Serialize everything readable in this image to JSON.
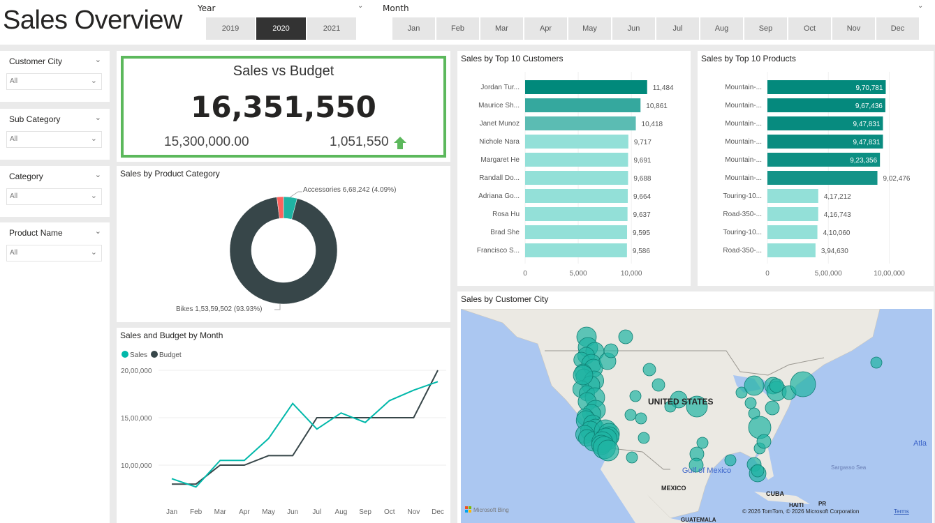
{
  "header": {
    "title": "Sales Overview"
  },
  "year_slicer": {
    "label": "Year",
    "options": [
      "2019",
      "2020",
      "2021"
    ],
    "selected": "2020"
  },
  "month_slicer": {
    "label": "Month",
    "options": [
      "Jan",
      "Feb",
      "Mar",
      "Apr",
      "May",
      "Jun",
      "Jul",
      "Aug",
      "Sep",
      "Oct",
      "Nov",
      "Dec"
    ]
  },
  "filters": [
    {
      "label": "Customer City",
      "value": "All"
    },
    {
      "label": "Sub Category",
      "value": "All"
    },
    {
      "label": "Category",
      "value": "All"
    },
    {
      "label": "Product Name",
      "value": "All"
    }
  ],
  "kpi": {
    "title": "Sales vs Budget",
    "value": "16,351,550",
    "budget": "15,300,000.00",
    "variance": "1,051,550",
    "trend_icon": "arrow-up",
    "accent": "#5cb85c"
  },
  "chart_data": [
    {
      "type": "pie",
      "title": "Sales by Product Category",
      "donut": true,
      "slices": [
        {
          "name": "Accessories",
          "value": 668242,
          "label": "Accessories 6,68,242 (4.09%)",
          "percent": 4.09,
          "color": "#1fb3a3"
        },
        {
          "name": "Bikes",
          "value": 15359502,
          "label": "Bikes 1,53,59,502 (93.93%)",
          "percent": 93.93,
          "color": "#374649"
        },
        {
          "name": "",
          "percent": 1.98,
          "color": "#fd625e"
        }
      ]
    },
    {
      "type": "bar",
      "orientation": "horizontal",
      "title": "Sales by Top 10 Customers",
      "categories": [
        "Jordan Tur...",
        "Maurice Sh...",
        "Janet Munoz",
        "Nichole Nara",
        "Margaret He",
        "Randall Do...",
        "Adriana Go...",
        "Rosa Hu",
        "Brad She",
        "Francisco S..."
      ],
      "values": [
        11484,
        10861,
        10418,
        9717,
        9691,
        9688,
        9664,
        9637,
        9595,
        9586
      ],
      "value_labels": [
        "11,484",
        "10,861",
        "10,418",
        "9,717",
        "9,691",
        "9,688",
        "9,664",
        "9,637",
        "9,595",
        "9,586"
      ],
      "xlim": [
        0,
        11500
      ],
      "xticks": [
        0,
        5000,
        10000
      ],
      "xtick_labels": [
        "0",
        "5,000",
        "10,000"
      ],
      "colors": [
        "#01897b",
        "#35a89e",
        "#5bbcb3",
        "#93e0d8",
        "#93e0d8",
        "#93e0d8",
        "#93e0d8",
        "#93e0d8",
        "#93e0d8",
        "#93e0d8"
      ]
    },
    {
      "type": "bar",
      "orientation": "horizontal",
      "title": "Sales by Top 10 Products",
      "categories": [
        "Mountain-...",
        "Mountain-...",
        "Mountain-...",
        "Mountain-...",
        "Mountain-...",
        "Mountain-...",
        "Touring-10...",
        "Road-350-...",
        "Touring-10...",
        "Road-350-..."
      ],
      "values": [
        970781,
        967436,
        947831,
        947831,
        923356,
        902476,
        417212,
        416743,
        410060,
        394630
      ],
      "value_labels": [
        "9,70,781",
        "9,67,436",
        "9,47,831",
        "9,47,831",
        "9,23,356",
        "9,02,476",
        "4,17,212",
        "4,16,743",
        "4,10,060",
        "3,94,630"
      ],
      "xlim": [
        0,
        1100000
      ],
      "xticks": [
        0,
        500000,
        1000000
      ],
      "xtick_labels": [
        "0",
        "5,00,000",
        "10,00,000"
      ],
      "colors": [
        "#03897c",
        "#05897d",
        "#078b7f",
        "#098c80",
        "#0d8f83",
        "#149388",
        "#93e0d8",
        "#93e0d8",
        "#93e0d8",
        "#93e0d8"
      ]
    },
    {
      "type": "line",
      "title": "Sales and Budget by Month",
      "categories": [
        "Jan",
        "Feb",
        "Mar",
        "Apr",
        "May",
        "Jun",
        "Jul",
        "Aug",
        "Sep",
        "Oct",
        "Nov",
        "Dec"
      ],
      "series": [
        {
          "name": "Sales",
          "color": "#01b8aa",
          "values": [
            857000,
            770000,
            1050000,
            1050000,
            1280000,
            1650000,
            1380000,
            1550000,
            1450000,
            1680000,
            1790000,
            1880000
          ]
        },
        {
          "name": "Budget",
          "color": "#374649",
          "values": [
            800000,
            800000,
            1000000,
            1000000,
            1100000,
            1100000,
            1500000,
            1500000,
            1500000,
            1500000,
            1500000,
            2000000
          ]
        }
      ],
      "yticks": [
        1000000,
        1500000,
        2000000
      ],
      "ytick_labels": [
        "10,00,000",
        "15,00,000",
        "20,00,000"
      ],
      "legend": "top-left",
      "grid": true
    }
  ],
  "map": {
    "title": "Sales by Customer City",
    "labels": [
      "UNITED STATES",
      "Gulf of Mexico",
      "MEXICO",
      "CUBA",
      "HAITI",
      "PR",
      "GUATEMALA",
      "Sargasso Sea",
      "Atla"
    ],
    "provider": "Microsoft Bing",
    "attribution": "© 2026 TomTom, © 2026 Microsoft Corporation",
    "terms": "Terms",
    "bubble_color": "#1fb3a3"
  }
}
